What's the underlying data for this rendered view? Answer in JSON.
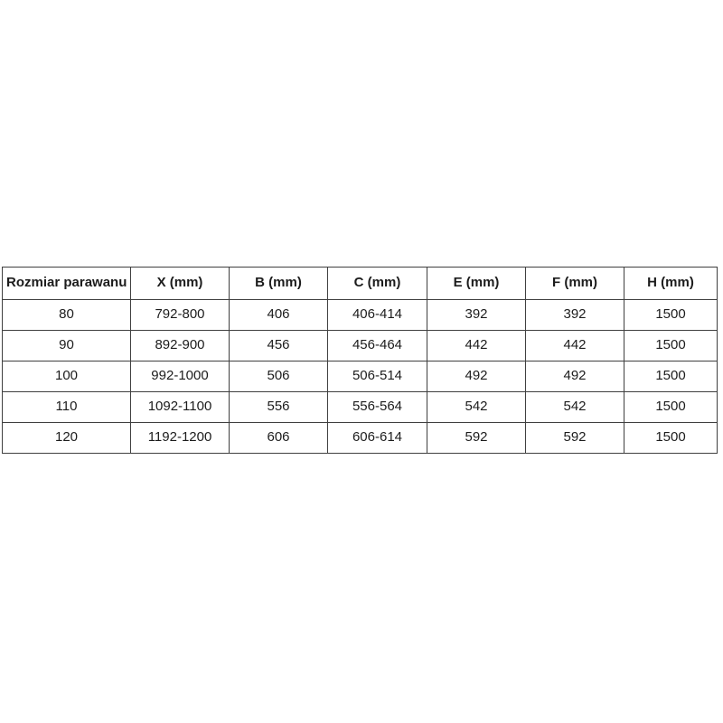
{
  "page": {
    "background_color": "#ffffff",
    "border_color": "#3f3f3f",
    "text_color": "#1c1c1c"
  },
  "table": {
    "headers": [
      "Rozmiar parawanu",
      "X (mm)",
      "B (mm)",
      "C (mm)",
      "E (mm)",
      "F (mm)",
      "H (mm)"
    ],
    "rows": [
      [
        "80",
        "792-800",
        "406",
        "406-414",
        "392",
        "392",
        "1500"
      ],
      [
        "90",
        "892-900",
        "456",
        "456-464",
        "442",
        "442",
        "1500"
      ],
      [
        "100",
        "992-1000",
        "506",
        "506-514",
        "492",
        "492",
        "1500"
      ],
      [
        "110",
        "1092-1100",
        "556",
        "556-564",
        "542",
        "542",
        "1500"
      ],
      [
        "120",
        "1192-1200",
        "606",
        "606-614",
        "592",
        "592",
        "1500"
      ]
    ]
  }
}
